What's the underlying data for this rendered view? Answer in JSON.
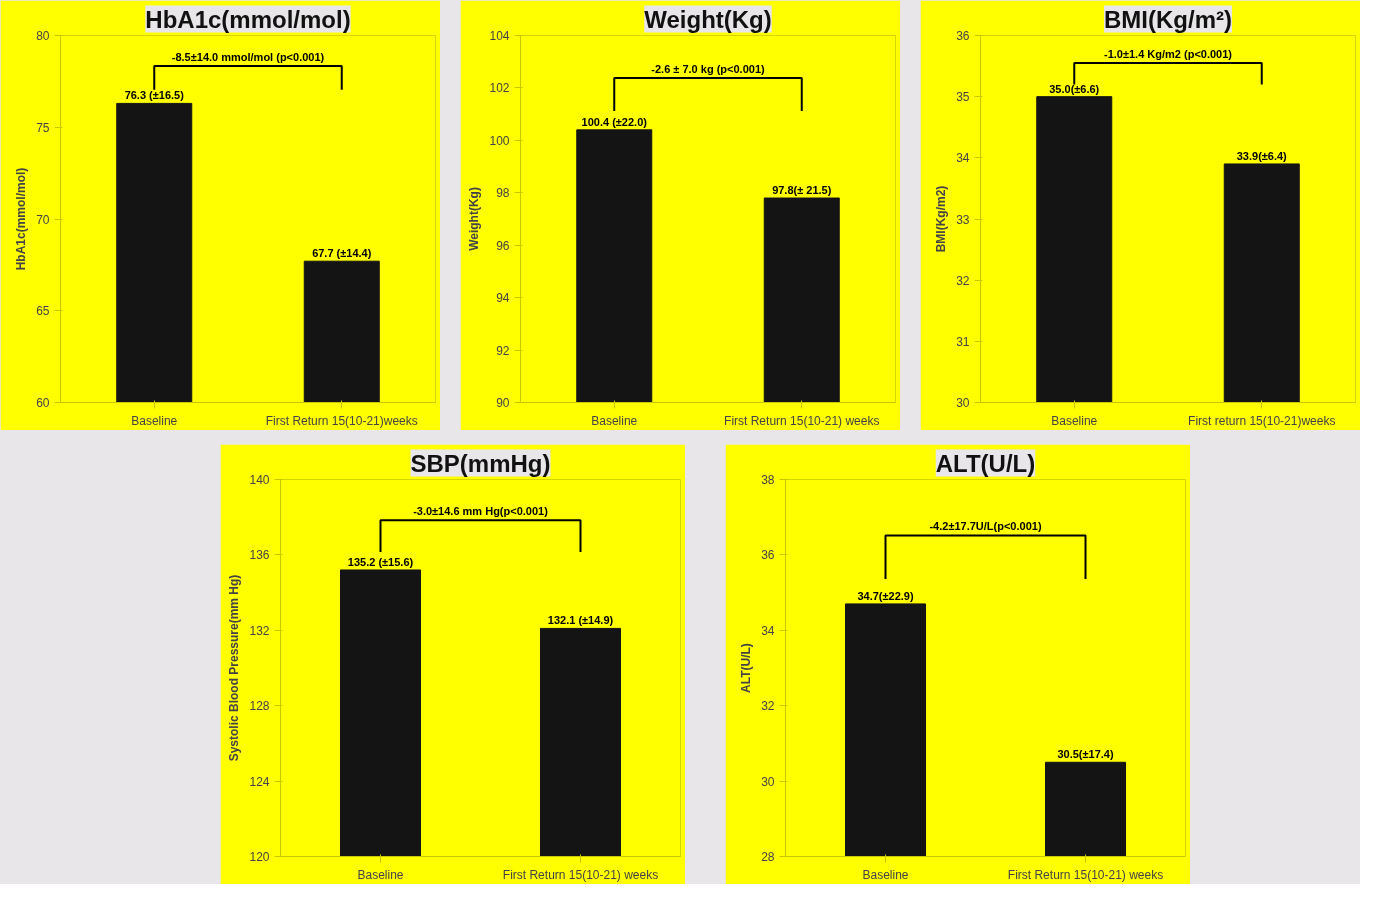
{
  "chart_data": [
    {
      "type": "bar",
      "title": "HbA1c(mmol/mol)",
      "ylabel": "HbA1c(mmol/mol)",
      "categories": [
        "Baseline",
        "First Return 15(10-21)weeks"
      ],
      "values": [
        76.3,
        67.7
      ],
      "color": "#141414",
      "value_labels": [
        "76.3 (±16.5)",
        "67.7 (±14.4)"
      ],
      "ylim": [
        60,
        80
      ],
      "yticks": [
        60,
        65,
        70,
        75,
        80
      ],
      "annotations": [
        "-8.5±14.0 mmol/mol (p<0.001)"
      ],
      "grid": false
    },
    {
      "type": "bar",
      "title": "Weight(Kg)",
      "ylabel": "Weight(Kg)",
      "categories": [
        "Baseline",
        "First Return 15(10-21) weeks"
      ],
      "values": [
        100.4,
        97.8
      ],
      "color": "#141414",
      "value_labels": [
        "100.4 (±22.0)",
        "97.8(± 21.5)"
      ],
      "ylim": [
        90,
        104
      ],
      "yticks": [
        90,
        92,
        94,
        96,
        98,
        100,
        102,
        104
      ],
      "annotations": [
        "-2.6 ± 7.0 kg (p<0.001)"
      ],
      "grid": false
    },
    {
      "type": "bar",
      "title": "BMI(Kg/m²)",
      "ylabel": "BMI(Kg/m2)",
      "categories": [
        "Baseline",
        "First return 15(10-21)weeks"
      ],
      "values": [
        35.0,
        33.9
      ],
      "color": "#141414",
      "value_labels": [
        "35.0(±6.6)",
        "33.9(±6.4)"
      ],
      "ylim": [
        30,
        36
      ],
      "yticks": [
        30,
        31,
        32,
        33,
        34,
        35,
        36
      ],
      "annotations": [
        "-1.0±1.4 Kg/m2 (p<0.001)"
      ],
      "grid": false
    },
    {
      "type": "bar",
      "title": "SBP(mmHg)",
      "ylabel": "Systolic Blood Pressure(mm Hg)",
      "categories": [
        "Baseline",
        "First Return 15(10-21) weeks"
      ],
      "values": [
        135.2,
        132.1
      ],
      "color": "#141414",
      "value_labels": [
        "135.2 (±15.6)",
        "132.1 (±14.9)"
      ],
      "ylim": [
        120,
        140
      ],
      "yticks": [
        120,
        124,
        128,
        132,
        136,
        140
      ],
      "annotations": [
        "-3.0±14.6 mm Hg(p<0.001)"
      ],
      "grid": false
    },
    {
      "type": "bar",
      "title": "ALT(U/L)",
      "ylabel": "ALT(U/L)",
      "categories": [
        "Baseline",
        "First Return 15(10-21) weeks"
      ],
      "values": [
        34.7,
        30.5
      ],
      "color": "#141414",
      "value_labels": [
        "34.7(±22.9)",
        "30.5(±17.4)"
      ],
      "ylim": [
        28,
        38
      ],
      "yticks": [
        28,
        30,
        32,
        34,
        36,
        38
      ],
      "annotations": [
        "-4.2±17.7U/L(p<0.001)"
      ],
      "grid": false
    }
  ]
}
